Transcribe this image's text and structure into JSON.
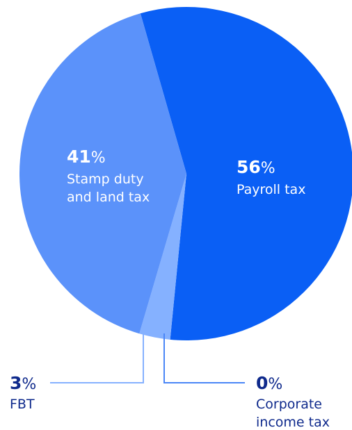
{
  "chart_data": {
    "type": "pie",
    "slices": [
      {
        "key": "payroll",
        "value": 56,
        "percent": "%",
        "number": "56",
        "label_lines": [
          "Payroll tax"
        ],
        "color": "#0a5ff5"
      },
      {
        "key": "corporate",
        "value": 0,
        "percent": "%",
        "number": "0",
        "label_lines": [
          "Corporate",
          "income tax"
        ],
        "color": "#0a5ff5"
      },
      {
        "key": "fbt",
        "value": 3,
        "percent": "%",
        "number": "3",
        "label_lines": [
          "FBT"
        ],
        "color": "#85b1ff"
      },
      {
        "key": "stamp",
        "value": 41,
        "percent": "%",
        "number": "41",
        "label_lines": [
          "Stamp duty",
          "and land tax"
        ],
        "color": "#5b92fa"
      }
    ],
    "text_color_inside": "#ffffff",
    "text_color_outside": "#0f2a8c",
    "leader_colors": {
      "fbt": "#85b1ff",
      "corporate": "#4a86f7"
    }
  }
}
